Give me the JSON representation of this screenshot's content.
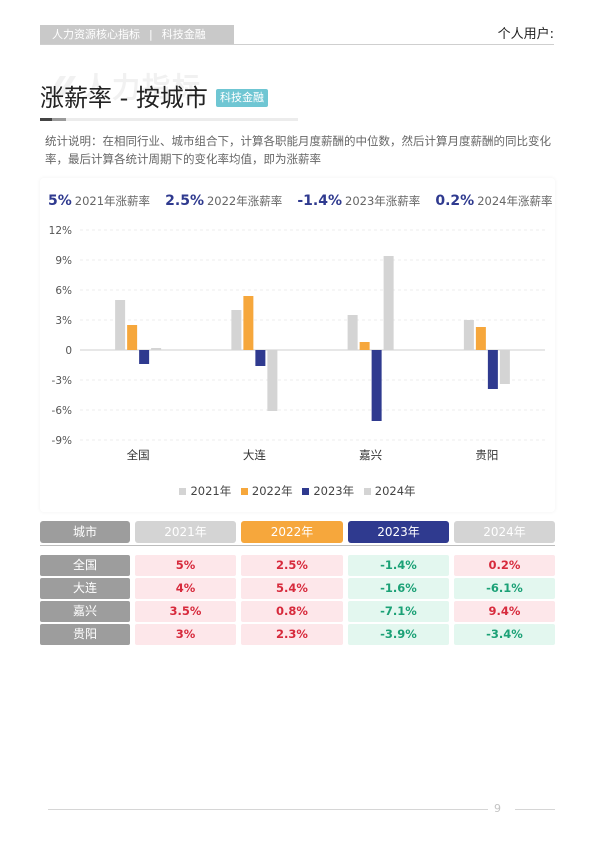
{
  "header": {
    "tag_left": "人力资源核心指标",
    "tag_sep": "|",
    "tag_right": "科技金融",
    "user_label": "个人用户:"
  },
  "watermark": "人力指标",
  "title": "涨薪率 - 按城市",
  "title_badge": "科技金融",
  "note": "统计说明：在相同行业、城市组合下，计算各职能月度薪酬的中位数，然后计算月度薪酬的同比变化率，最后计算各统计周期下的变化率均值，即为涨薪率",
  "summary": [
    {
      "value": "5%",
      "label": "2021年涨薪率"
    },
    {
      "value": "2.5%",
      "label": "2022年涨薪率"
    },
    {
      "value": "-1.4%",
      "label": "2023年涨薪率"
    },
    {
      "value": "0.2%",
      "label": "2024年涨薪率"
    }
  ],
  "colors": {
    "s2021": "#d4d4d4",
    "s2022": "#f6a73c",
    "s2023": "#2f3a8f",
    "s2024": "#d4d4d4",
    "up_text": "#d72a3c",
    "down_text": "#1ba176"
  },
  "chart_data": {
    "type": "bar",
    "categories": [
      "全国",
      "大连",
      "嘉兴",
      "贵阳"
    ],
    "series": [
      {
        "name": "2021年",
        "values": [
          5,
          4,
          3.5,
          3
        ]
      },
      {
        "name": "2022年",
        "values": [
          2.5,
          5.4,
          0.8,
          2.3
        ]
      },
      {
        "name": "2023年",
        "values": [
          -1.4,
          -1.6,
          -7.1,
          -3.9
        ]
      },
      {
        "name": "2024年",
        "values": [
          0.2,
          -6.1,
          9.4,
          -3.4
        ]
      }
    ],
    "y_ticks": [
      "12%",
      "9%",
      "6%",
      "3%",
      "0",
      "-3%",
      "-6%",
      "-9%"
    ],
    "ylim": [
      -9,
      12
    ],
    "grid": true,
    "legend_position": "bottom"
  },
  "table": {
    "headers": [
      "城市",
      "2021年",
      "2022年",
      "2023年",
      "2024年"
    ],
    "rows": [
      {
        "city": "全国",
        "values": [
          "5%",
          "2.5%",
          "-1.4%",
          "0.2%"
        ]
      },
      {
        "city": "大连",
        "values": [
          "4%",
          "5.4%",
          "-1.6%",
          "-6.1%"
        ]
      },
      {
        "city": "嘉兴",
        "values": [
          "3.5%",
          "0.8%",
          "-7.1%",
          "9.4%"
        ]
      },
      {
        "city": "贵阳",
        "values": [
          "3%",
          "2.3%",
          "-3.9%",
          "-3.4%"
        ]
      }
    ]
  },
  "footer": {
    "page_number": "9"
  }
}
